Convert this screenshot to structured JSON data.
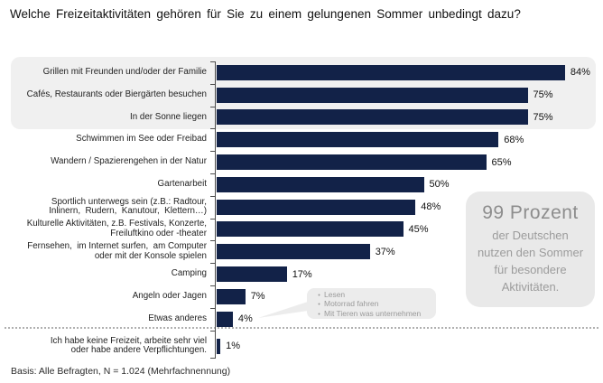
{
  "title": "Welche Freizeitaktivitäten  gehören  für Sie zu einem  gelungenen  Sommer unbedingt  dazu?",
  "footer": "Basis: Alle Befragten,  N = 1.024  (Mehrfachnennung)",
  "callout": {
    "headline": "99 Prozent",
    "body": "der Deutschen nutzen  den Sommer für besondere Aktivitäten."
  },
  "annotation": {
    "items": [
      "Lesen",
      "Motorrad fahren",
      "Mit Tieren was unternehmen"
    ],
    "points_to": "Etwas anderes"
  },
  "colors": {
    "bar": "#122248",
    "highlight_box": "#f0f0f0",
    "callout_box": "#e9e9e9",
    "callout_headline_text": "#8d8d8d",
    "callout_body_text": "#9c9c9c",
    "bubble_box": "#ececec",
    "bubble_text": "#9a9a9a",
    "axis": "#4d4d4d"
  },
  "chart_data": {
    "type": "bar",
    "orientation": "horizontal",
    "unit": "%",
    "xlim": [
      0,
      100
    ],
    "grid": false,
    "highlighted_rows": [
      0,
      1,
      2
    ],
    "categories": [
      "Grillen mit Freunden und/oder der Familie",
      "Cafés, Restaurants oder Biergärten besuchen",
      "In der Sonne liegen",
      "Schwimmen im See oder Freibad",
      "Wandern / Spazierengehen in der Natur",
      "Gartenarbeit",
      "Sportlich unterwegs sein (z.B.: Radtour,\nInlinern,  Rudern,  Kanutour,  Klettern…)",
      "Kulturelle Aktivitäten, z.B. Festivals, Konzerte,\nFreiluftkino oder -theater",
      "Fernsehen,  im Internet surfen,  am Computer\noder mit der Konsole spielen",
      "Camping",
      "Angeln oder Jagen",
      "Etwas anderes",
      "Ich habe keine Freizeit, arbeite sehr viel\noder habe andere Verpflichtungen."
    ],
    "values": [
      84,
      75,
      75,
      68,
      65,
      50,
      48,
      45,
      37,
      17,
      7,
      4,
      1
    ]
  }
}
